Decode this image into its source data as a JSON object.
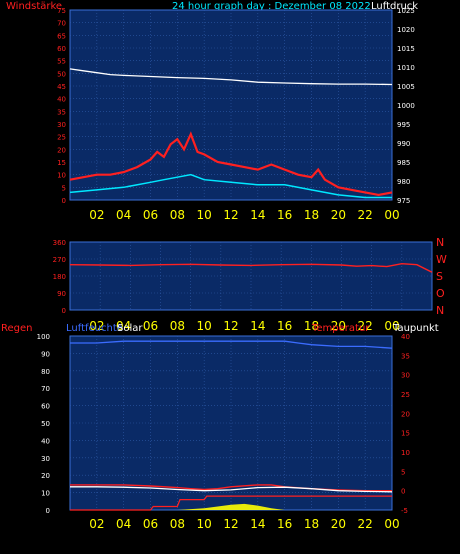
{
  "colors": {
    "background": "#000000",
    "plot": "#0a2a66",
    "grid": "#2f5aa8",
    "frame": "#3a6fd8",
    "red": "#ff2020",
    "white": "#ffffff",
    "cyan": "#00e8ff",
    "yellow": "#ffff00",
    "lightcyan": "#c8ffff",
    "blue": "#3b6cff"
  },
  "header": {
    "left_title": "Windstärke",
    "center_title": "24 hour graph day : Dezember 08 2022",
    "right_title": "Luftdruck"
  },
  "panel3_labels": {
    "regen": "Regen",
    "luftfeuchte": "Luftfeuchte",
    "solar": "Solar",
    "temperatur": "Temperatur",
    "taupunkt": "Taupunkt"
  },
  "chart_data": [
    {
      "type": "line",
      "title": "24 hour graph day : Dezember 08 2022",
      "x_ticks": [
        "02",
        "04",
        "06",
        "08",
        "10",
        "12",
        "14",
        "16",
        "18",
        "20",
        "22",
        "00"
      ],
      "y_left_label": "Windstärke",
      "y_left_ticks": [
        "0",
        "5",
        "10",
        "15",
        "20",
        "25",
        "30",
        "35",
        "40",
        "45",
        "50",
        "55",
        "60",
        "65",
        "70",
        "75"
      ],
      "y_left_range": [
        0,
        75
      ],
      "y_right_label": "Luftdruck",
      "y_right_ticks": [
        "975",
        "980",
        "985",
        "990",
        "995",
        "1000",
        "1005",
        "1010",
        "1015",
        "1020",
        "1025"
      ],
      "y_right_range": [
        975,
        1025
      ],
      "grid": true,
      "series": [
        {
          "role": "gust",
          "color": "#ff2020",
          "hours": [
            0,
            1,
            2,
            3,
            4,
            5,
            6,
            6.5,
            7,
            7.5,
            8,
            8.5,
            9,
            9.5,
            10,
            11,
            12,
            13,
            14,
            15,
            16,
            17,
            18,
            18.5,
            19,
            20,
            21,
            22,
            23,
            24
          ],
          "values": [
            8,
            9,
            10,
            10,
            11,
            13,
            16,
            19,
            17,
            22,
            24,
            20,
            26,
            19,
            18,
            15,
            14,
            13,
            12,
            14,
            12,
            10,
            9,
            12,
            8,
            5,
            4,
            3,
            2,
            3
          ]
        },
        {
          "role": "wind",
          "color": "#00e8ff",
          "hours": [
            0,
            2,
            4,
            6,
            7,
            8,
            9,
            10,
            12,
            14,
            16,
            18,
            19,
            20,
            22,
            24
          ],
          "values": [
            3,
            4,
            5,
            7,
            8,
            9,
            10,
            8,
            7,
            6,
            6,
            4,
            3,
            2,
            1,
            1
          ]
        },
        {
          "role": "pressure",
          "color": "#ffffff",
          "hours": [
            0,
            1,
            2,
            3,
            4,
            6,
            8,
            10,
            12,
            14,
            16,
            18,
            20,
            22,
            24
          ],
          "values": [
            1009.5,
            1009.0,
            1008.5,
            1008.0,
            1007.8,
            1007.5,
            1007.2,
            1007.0,
            1006.6,
            1006.0,
            1005.8,
            1005.6,
            1005.5,
            1005.5,
            1005.4
          ]
        }
      ]
    },
    {
      "type": "line",
      "x_ticks": [
        "02",
        "04",
        "06",
        "08",
        "10",
        "12",
        "14",
        "16",
        "18",
        "20",
        "22",
        "00"
      ],
      "y_left_ticks": [
        "0",
        "90",
        "180",
        "270",
        "360"
      ],
      "y_left_range": [
        0,
        360
      ],
      "y_right_labels": [
        "N",
        "W",
        "S",
        "O",
        "N"
      ],
      "grid": true,
      "series": [
        {
          "role": "wind_direction",
          "color": "#ff2020",
          "hours": [
            0,
            2,
            4,
            6,
            8,
            10,
            12,
            14,
            16,
            18,
            19,
            20,
            21,
            22,
            23,
            24
          ],
          "values": [
            240,
            238,
            236,
            240,
            242,
            238,
            236,
            240,
            242,
            238,
            232,
            235,
            230,
            245,
            240,
            200
          ]
        }
      ]
    },
    {
      "type": "line",
      "x_ticks": [
        "02",
        "04",
        "06",
        "08",
        "10",
        "12",
        "14",
        "16",
        "18",
        "20",
        "22",
        "00"
      ],
      "y_left_label": "Regen",
      "y_left_ticks": [
        "0",
        "10",
        "20",
        "30",
        "40",
        "50",
        "60",
        "70",
        "80",
        "90",
        "100"
      ],
      "y_left_range": [
        0,
        100
      ],
      "y_right_label": "Taupunkt",
      "y_right_ticks": [
        "-5",
        "0",
        "5",
        "10",
        "15",
        "20",
        "25",
        "30",
        "35",
        "40"
      ],
      "y_right_range": [
        -5,
        40
      ],
      "grid": true,
      "series": [
        {
          "role": "humidity",
          "color": "#3b6cff",
          "hours": [
            0,
            2,
            4,
            6,
            8,
            10,
            12,
            14,
            16,
            17,
            18,
            20,
            22,
            24
          ],
          "values": [
            96,
            96,
            97,
            97,
            97,
            97,
            97,
            97,
            97,
            96,
            95,
            94,
            94,
            93
          ]
        },
        {
          "role": "temperature",
          "color": "#ff2020",
          "hours": [
            0,
            2,
            4,
            6,
            8,
            9,
            10,
            11,
            12,
            14,
            15,
            16,
            18,
            20,
            22,
            24
          ],
          "values": [
            1.5,
            1.5,
            1.5,
            1.2,
            0.8,
            0.5,
            0.3,
            0.5,
            1.0,
            1.5,
            1.5,
            1.0,
            0.5,
            0.2,
            0.0,
            0.0
          ]
        },
        {
          "role": "dew_point",
          "color": "#ffffff",
          "hours": [
            0,
            2,
            4,
            6,
            8,
            10,
            12,
            14,
            16,
            18,
            20,
            22,
            24
          ],
          "values": [
            1.0,
            1.0,
            0.9,
            0.7,
            0.3,
            0.0,
            0.2,
            0.8,
            0.9,
            0.5,
            0.0,
            -0.2,
            -0.3
          ]
        },
        {
          "role": "rain",
          "color": "#ff2020",
          "hours": [
            0,
            6,
            6.2,
            8,
            8.2,
            10,
            10.2,
            24
          ],
          "values": [
            0,
            0,
            2,
            2,
            6,
            6,
            8,
            8
          ]
        },
        {
          "role": "solar",
          "color": "#ffff00",
          "hours": [
            0,
            8,
            9,
            10,
            11,
            12,
            13,
            14,
            15,
            16,
            24
          ],
          "values": [
            0,
            0,
            0.5,
            1,
            2,
            3,
            3.5,
            2.5,
            1,
            0,
            0
          ]
        }
      ]
    }
  ]
}
